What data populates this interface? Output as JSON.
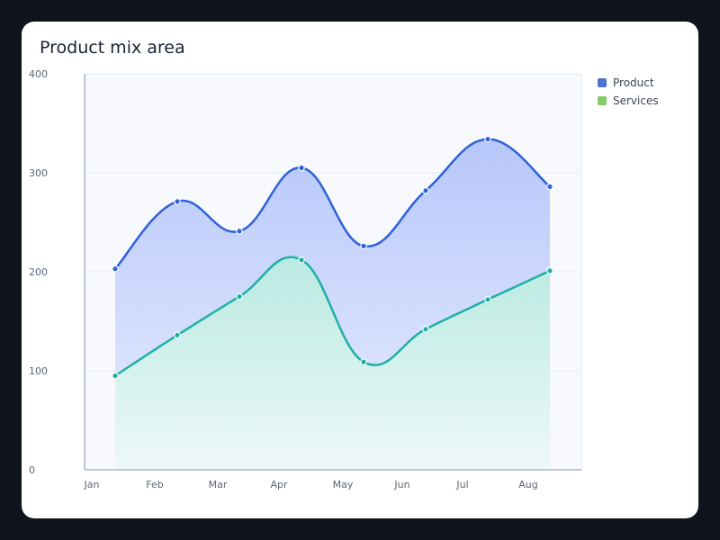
{
  "chart_data": {
    "type": "area",
    "title": "Product mix area",
    "x": [
      "Jan",
      "Feb",
      "Mar",
      "Apr",
      "May",
      "Jun",
      "Jul",
      "Aug"
    ],
    "ylim": [
      0,
      400
    ],
    "yticks": [
      "0",
      "100",
      "200",
      "300",
      "400"
    ],
    "grid": true,
    "legend_position": "right",
    "series": [
      {
        "name": "Product",
        "values": [
          203,
          271,
          241,
          305,
          226,
          282,
          334,
          286
        ],
        "color": "#2f62d8",
        "fill": "#b7c8fb",
        "swatch": "#4e71d4"
      },
      {
        "name": "Services",
        "values": [
          95,
          136,
          175,
          212,
          109,
          142,
          172,
          201
        ],
        "color": "#1eb0a5",
        "fill": "#bdece2",
        "swatch": "#86c96b"
      }
    ]
  }
}
